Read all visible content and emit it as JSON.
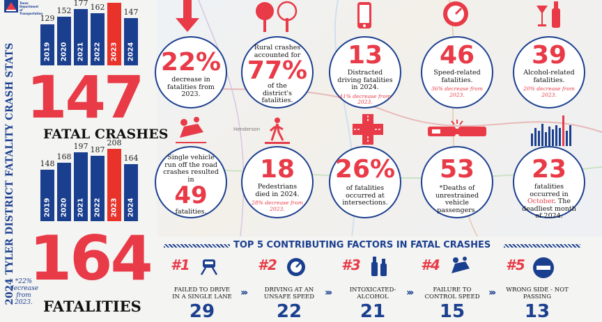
{
  "title": "2024 TYLER DISTRICT FATALITY CRASH STATS",
  "logo": {
    "lines": [
      "Texas",
      "Department",
      "of Transportation"
    ]
  },
  "colors": {
    "blue": "#1b3f8f",
    "red": "#e83a47",
    "highlight_bar": "#e8322a"
  },
  "crashes_chart": {
    "type": "bar",
    "categories": [
      "2019",
      "2020",
      "2021",
      "2022",
      "2023",
      "2024"
    ],
    "values": [
      129,
      152,
      177,
      162,
      195,
      147
    ],
    "value_labels": [
      "129",
      "152",
      "177",
      "162",
      "",
      "147"
    ],
    "highlight": "2023"
  },
  "crashes_total": {
    "number": "147",
    "label": "FATAL CRASHES"
  },
  "fatalities_chart": {
    "type": "bar",
    "categories": [
      "2019",
      "2020",
      "2021",
      "2022",
      "2023",
      "2024"
    ],
    "values": [
      148,
      168,
      197,
      187,
      208,
      164
    ],
    "value_labels": [
      "148",
      "168",
      "197",
      "187",
      "208",
      "164"
    ],
    "highlight": "2023"
  },
  "fatalities_total": {
    "number": "164",
    "label": "FATALITIES",
    "note": "*22% decrease from 2023."
  },
  "stats": [
    {
      "id": "decrease",
      "icon": "down-arrow-icon",
      "number": "22%",
      "text": "decrease in fatalities from 2023.",
      "note": ""
    },
    {
      "id": "rural",
      "icon": "trees-icon",
      "text_top": "Rural crashes accounted for",
      "number": "77%",
      "text": "of the district's fatalities.",
      "note": ""
    },
    {
      "id": "distracted",
      "icon": "phone-icon",
      "number": "13",
      "text": "Distracted driving fatalities in 2024.",
      "note": "41% decrease from 2023."
    },
    {
      "id": "speed",
      "icon": "speedometer-icon",
      "number": "46",
      "text": "Speed-related fatalities.",
      "note": "36% decrease from 2023."
    },
    {
      "id": "alcohol",
      "icon": "bottles-icon",
      "number": "39",
      "text": "Alcohol-related fatalities.",
      "note": "20% decrease from 2023."
    },
    {
      "id": "single-vehicle",
      "icon": "overturned-car-icon",
      "text_top": "Single vehicle run off the road crashes resulted in",
      "number": "49",
      "text": "fatalities.",
      "note": ""
    },
    {
      "id": "pedestrians",
      "icon": "pedestrian-icon",
      "number": "18",
      "text": "Pedestrians died in 2024.",
      "note": "28% decrease from 2023."
    },
    {
      "id": "intersections",
      "icon": "intersection-icon",
      "number": "26%",
      "text": "of fatalities occurred at intersections.",
      "note": ""
    },
    {
      "id": "unrestrained",
      "icon": "seatbelt-icon",
      "number": "53",
      "text": "*Deaths of unrestrained vehicle passengers.",
      "note": ""
    },
    {
      "id": "october",
      "icon": "monthly-bars-icon",
      "number": "23",
      "text_pre": "fatalities occurred in",
      "text_highlight": "October",
      "text_post": ". The deadliest month of 2024.",
      "note": ""
    }
  ],
  "factors": {
    "title": "TOP 5 CONTRIBUTING FACTORS IN FATAL CRASHES",
    "items": [
      {
        "rank": "#1",
        "icon": "lane-car-icon",
        "label": "FAILED TO DRIVE IN A SINGLE LANE",
        "value": "29"
      },
      {
        "rank": "#2",
        "icon": "speedometer-icon",
        "label": "DRIVING AT AN UNSAFE SPEED",
        "value": "22"
      },
      {
        "rank": "#3",
        "icon": "bottles-icon",
        "label": "INTOXICATED-ALCOHOL",
        "value": "21"
      },
      {
        "rank": "#4",
        "icon": "overturned-car-icon",
        "label": "FAILURE TO CONTROL SPEED",
        "value": "15"
      },
      {
        "rank": "#5",
        "icon": "do-not-enter-icon",
        "label": "WRONG SIDE - NOT PASSING",
        "value": "13"
      }
    ]
  },
  "map_label": "Henderson"
}
